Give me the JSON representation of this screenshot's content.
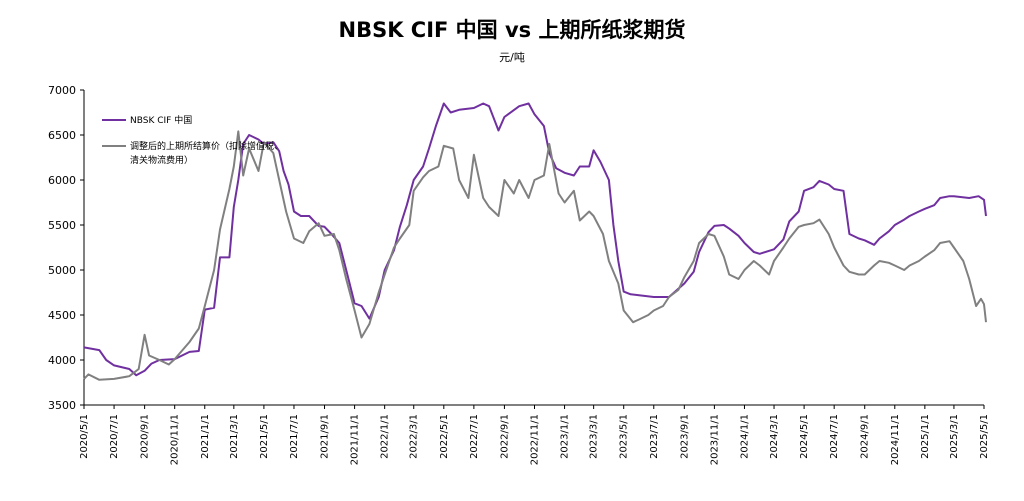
{
  "chart_data": {
    "type": "line",
    "title": "NBSK CIF 中国 vs 上期所纸浆期货",
    "subtitle": "元/吨",
    "xlabel": "",
    "ylabel": "",
    "ylim": [
      3500,
      7000
    ],
    "yticks": [
      3500,
      4000,
      4500,
      5000,
      5500,
      6000,
      6500,
      7000
    ],
    "xticks": [
      "2020/5/1",
      "2020/7/1",
      "2020/9/1",
      "2020/11/1",
      "2021/1/1",
      "2021/3/1",
      "2021/5/1",
      "2021/7/1",
      "2021/9/1",
      "2021/11/1",
      "2022/1/1",
      "2022/3/1",
      "2022/5/1",
      "2022/7/1",
      "2022/9/1",
      "2022/11/1",
      "2023/1/1",
      "2023/3/1",
      "2023/5/1",
      "2023/7/1",
      "2023/9/1",
      "2023/11/1",
      "2024/1/1",
      "2024/3/1",
      "2024/5/1",
      "2024/7/1",
      "2024/9/1",
      "2024/11/1",
      "2025/1/1",
      "2025/3/1",
      "2025/5/1"
    ],
    "grid": false,
    "legend": "top-left",
    "series": [
      {
        "name": "NBSK CIF 中国",
        "color": "#7030A0",
        "points": [
          [
            "2020/5/1",
            4140
          ],
          [
            "2020/6/1",
            4110
          ],
          [
            "2020/6/15",
            4000
          ],
          [
            "2020/7/1",
            3940
          ],
          [
            "2020/8/1",
            3900
          ],
          [
            "2020/8/15",
            3830
          ],
          [
            "2020/9/1",
            3880
          ],
          [
            "2020/9/15",
            3960
          ],
          [
            "2020/10/1",
            4000
          ],
          [
            "2020/11/1",
            4010
          ],
          [
            "2020/12/1",
            4090
          ],
          [
            "2020/12/20",
            4100
          ],
          [
            "2021/1/1",
            4560
          ],
          [
            "2021/1/20",
            4580
          ],
          [
            "2021/2/1",
            5140
          ],
          [
            "2021/2/20",
            5140
          ],
          [
            "2021/3/1",
            5700
          ],
          [
            "2021/3/10",
            6000
          ],
          [
            "2021/3/20",
            6400
          ],
          [
            "2021/4/1",
            6500
          ],
          [
            "2021/4/20",
            6450
          ],
          [
            "2021/5/1",
            6400
          ],
          [
            "2021/5/20",
            6420
          ],
          [
            "2021/6/1",
            6320
          ],
          [
            "2021/6/10",
            6100
          ],
          [
            "2021/6/20",
            5950
          ],
          [
            "2021/7/1",
            5650
          ],
          [
            "2021/7/15",
            5600
          ],
          [
            "2021/8/1",
            5600
          ],
          [
            "2021/8/20",
            5490
          ],
          [
            "2021/9/1",
            5480
          ],
          [
            "2021/9/15",
            5400
          ],
          [
            "2021/10/1",
            5300
          ],
          [
            "2021/10/15",
            5000
          ],
          [
            "2021/11/1",
            4630
          ],
          [
            "2021/11/15",
            4600
          ],
          [
            "2021/12/1",
            4460
          ],
          [
            "2021/12/20",
            4700
          ],
          [
            "2022/1/1",
            5000
          ],
          [
            "2022/1/20",
            5220
          ],
          [
            "2022/2/1",
            5480
          ],
          [
            "2022/2/15",
            5720
          ],
          [
            "2022/3/1",
            6000
          ],
          [
            "2022/3/20",
            6150
          ],
          [
            "2022/4/1",
            6350
          ],
          [
            "2022/4/15",
            6600
          ],
          [
            "2022/5/1",
            6850
          ],
          [
            "2022/5/15",
            6750
          ],
          [
            "2022/6/1",
            6780
          ],
          [
            "2022/7/1",
            6800
          ],
          [
            "2022/7/20",
            6850
          ],
          [
            "2022/8/1",
            6820
          ],
          [
            "2022/8/20",
            6550
          ],
          [
            "2022/9/1",
            6700
          ],
          [
            "2022/10/1",
            6820
          ],
          [
            "2022/10/20",
            6850
          ],
          [
            "2022/11/1",
            6730
          ],
          [
            "2022/11/20",
            6600
          ],
          [
            "2022/12/1",
            6300
          ],
          [
            "2022/12/15",
            6130
          ],
          [
            "2023/1/1",
            6080
          ],
          [
            "2023/1/20",
            6050
          ],
          [
            "2023/2/1",
            6150
          ],
          [
            "2023/2/20",
            6150
          ],
          [
            "2023/3/1",
            6330
          ],
          [
            "2023/3/15",
            6200
          ],
          [
            "2023/4/1",
            6000
          ],
          [
            "2023/4/10",
            5500
          ],
          [
            "2023/4/20",
            5100
          ],
          [
            "2023/5/1",
            4760
          ],
          [
            "2023/5/15",
            4730
          ],
          [
            "2023/6/1",
            4720
          ],
          [
            "2023/7/1",
            4700
          ],
          [
            "2023/8/1",
            4700
          ],
          [
            "2023/9/1",
            4850
          ],
          [
            "2023/9/20",
            4980
          ],
          [
            "2023/10/1",
            5200
          ],
          [
            "2023/10/20",
            5420
          ],
          [
            "2023/11/1",
            5490
          ],
          [
            "2023/11/20",
            5500
          ],
          [
            "2023/12/1",
            5460
          ],
          [
            "2023/12/20",
            5380
          ],
          [
            "2024/1/1",
            5300
          ],
          [
            "2024/1/20",
            5200
          ],
          [
            "2024/2/1",
            5180
          ],
          [
            "2024/3/1",
            5230
          ],
          [
            "2024/3/20",
            5340
          ],
          [
            "2024/4/1",
            5540
          ],
          [
            "2024/4/20",
            5650
          ],
          [
            "2024/5/1",
            5880
          ],
          [
            "2024/5/20",
            5920
          ],
          [
            "2024/6/1",
            5990
          ],
          [
            "2024/6/20",
            5950
          ],
          [
            "2024/7/1",
            5900
          ],
          [
            "2024/7/20",
            5880
          ],
          [
            "2024/8/1",
            5400
          ],
          [
            "2024/8/20",
            5350
          ],
          [
            "2024/9/1",
            5330
          ],
          [
            "2024/9/20",
            5280
          ],
          [
            "2024/10/1",
            5350
          ],
          [
            "2024/10/20",
            5430
          ],
          [
            "2024/11/1",
            5500
          ],
          [
            "2024/11/20",
            5560
          ],
          [
            "2024/12/1",
            5600
          ],
          [
            "2024/12/20",
            5650
          ],
          [
            "2025/1/1",
            5680
          ],
          [
            "2025/1/20",
            5720
          ],
          [
            "2025/2/1",
            5800
          ],
          [
            "2025/2/20",
            5820
          ],
          [
            "2025/3/1",
            5820
          ],
          [
            "2025/4/1",
            5800
          ],
          [
            "2025/4/20",
            5820
          ],
          [
            "2025/5/1",
            5780
          ],
          [
            "2025/5/5",
            5600
          ]
        ]
      },
      {
        "name": "调整后的上期所结算价（扣除增值税、清关物流费用）",
        "color": "#808080",
        "points": [
          [
            "2020/5/1",
            3790
          ],
          [
            "2020/5/10",
            3840
          ],
          [
            "2020/6/1",
            3780
          ],
          [
            "2020/7/1",
            3790
          ],
          [
            "2020/8/1",
            3820
          ],
          [
            "2020/8/20",
            3900
          ],
          [
            "2020/9/1",
            4280
          ],
          [
            "2020/9/10",
            4050
          ],
          [
            "2020/10/1",
            4000
          ],
          [
            "2020/10/20",
            3950
          ],
          [
            "2020/11/1",
            4010
          ],
          [
            "2020/12/1",
            4200
          ],
          [
            "2020/12/20",
            4350
          ],
          [
            "2021/1/1",
            4600
          ],
          [
            "2021/1/20",
            5000
          ],
          [
            "2021/2/1",
            5450
          ],
          [
            "2021/2/20",
            5900
          ],
          [
            "2021/3/1",
            6150
          ],
          [
            "2021/3/10",
            6540
          ],
          [
            "2021/3/20",
            6050
          ],
          [
            "2021/4/1",
            6350
          ],
          [
            "2021/4/20",
            6100
          ],
          [
            "2021/5/1",
            6420
          ],
          [
            "2021/5/20",
            6300
          ],
          [
            "2021/6/1",
            6000
          ],
          [
            "2021/6/15",
            5650
          ],
          [
            "2021/7/1",
            5350
          ],
          [
            "2021/7/20",
            5300
          ],
          [
            "2021/8/1",
            5430
          ],
          [
            "2021/8/20",
            5520
          ],
          [
            "2021/9/1",
            5380
          ],
          [
            "2021/9/20",
            5400
          ],
          [
            "2021/10/1",
            5220
          ],
          [
            "2021/10/15",
            4900
          ],
          [
            "2021/11/1",
            4550
          ],
          [
            "2021/11/15",
            4250
          ],
          [
            "2021/12/1",
            4400
          ],
          [
            "2021/12/20",
            4750
          ],
          [
            "2022/1/1",
            4950
          ],
          [
            "2022/1/20",
            5250
          ],
          [
            "2022/2/1",
            5350
          ],
          [
            "2022/2/20",
            5500
          ],
          [
            "2022/3/1",
            5880
          ],
          [
            "2022/3/20",
            6030
          ],
          [
            "2022/4/1",
            6100
          ],
          [
            "2022/4/20",
            6150
          ],
          [
            "2022/5/1",
            6380
          ],
          [
            "2022/5/20",
            6350
          ],
          [
            "2022/6/1",
            6000
          ],
          [
            "2022/6/20",
            5800
          ],
          [
            "2022/7/1",
            6280
          ],
          [
            "2022/7/20",
            5800
          ],
          [
            "2022/8/1",
            5700
          ],
          [
            "2022/8/20",
            5600
          ],
          [
            "2022/9/1",
            6000
          ],
          [
            "2022/9/20",
            5850
          ],
          [
            "2022/10/1",
            6000
          ],
          [
            "2022/10/20",
            5800
          ],
          [
            "2022/11/1",
            6000
          ],
          [
            "2022/11/20",
            6050
          ],
          [
            "2022/12/1",
            6400
          ],
          [
            "2022/12/20",
            5850
          ],
          [
            "2023/1/1",
            5750
          ],
          [
            "2023/1/20",
            5880
          ],
          [
            "2023/2/1",
            5550
          ],
          [
            "2023/2/20",
            5650
          ],
          [
            "2023/3/1",
            5600
          ],
          [
            "2023/3/20",
            5400
          ],
          [
            "2023/4/1",
            5100
          ],
          [
            "2023/4/20",
            4850
          ],
          [
            "2023/5/1",
            4550
          ],
          [
            "2023/5/20",
            4420
          ],
          [
            "2023/6/1",
            4450
          ],
          [
            "2023/6/20",
            4500
          ],
          [
            "2023/7/1",
            4550
          ],
          [
            "2023/7/20",
            4600
          ],
          [
            "2023/8/1",
            4700
          ],
          [
            "2023/8/20",
            4780
          ],
          [
            "2023/9/1",
            4920
          ],
          [
            "2023/9/20",
            5100
          ],
          [
            "2023/10/1",
            5300
          ],
          [
            "2023/10/20",
            5400
          ],
          [
            "2023/11/1",
            5380
          ],
          [
            "2023/11/20",
            5150
          ],
          [
            "2023/12/1",
            4950
          ],
          [
            "2023/12/20",
            4900
          ],
          [
            "2024/1/1",
            5000
          ],
          [
            "2024/1/20",
            5100
          ],
          [
            "2024/2/1",
            5050
          ],
          [
            "2024/2/20",
            4950
          ],
          [
            "2024/3/1",
            5100
          ],
          [
            "2024/3/20",
            5250
          ],
          [
            "2024/4/1",
            5350
          ],
          [
            "2024/4/20",
            5480
          ],
          [
            "2024/5/1",
            5500
          ],
          [
            "2024/5/20",
            5520
          ],
          [
            "2024/6/1",
            5560
          ],
          [
            "2024/6/20",
            5400
          ],
          [
            "2024/7/1",
            5250
          ],
          [
            "2024/7/20",
            5050
          ],
          [
            "2024/8/1",
            4980
          ],
          [
            "2024/8/20",
            4950
          ],
          [
            "2024/9/1",
            4950
          ],
          [
            "2024/9/20",
            5050
          ],
          [
            "2024/10/1",
            5100
          ],
          [
            "2024/10/20",
            5080
          ],
          [
            "2024/11/1",
            5050
          ],
          [
            "2024/11/20",
            5000
          ],
          [
            "2024/12/1",
            5050
          ],
          [
            "2024/12/20",
            5100
          ],
          [
            "2025/1/1",
            5150
          ],
          [
            "2025/1/20",
            5220
          ],
          [
            "2025/2/1",
            5300
          ],
          [
            "2025/2/20",
            5320
          ],
          [
            "2025/3/1",
            5250
          ],
          [
            "2025/3/20",
            5100
          ],
          [
            "2025/4/1",
            4900
          ],
          [
            "2025/4/15",
            4600
          ],
          [
            "2025/4/25",
            4680
          ],
          [
            "2025/5/1",
            4620
          ],
          [
            "2025/5/5",
            4420
          ]
        ]
      }
    ]
  }
}
